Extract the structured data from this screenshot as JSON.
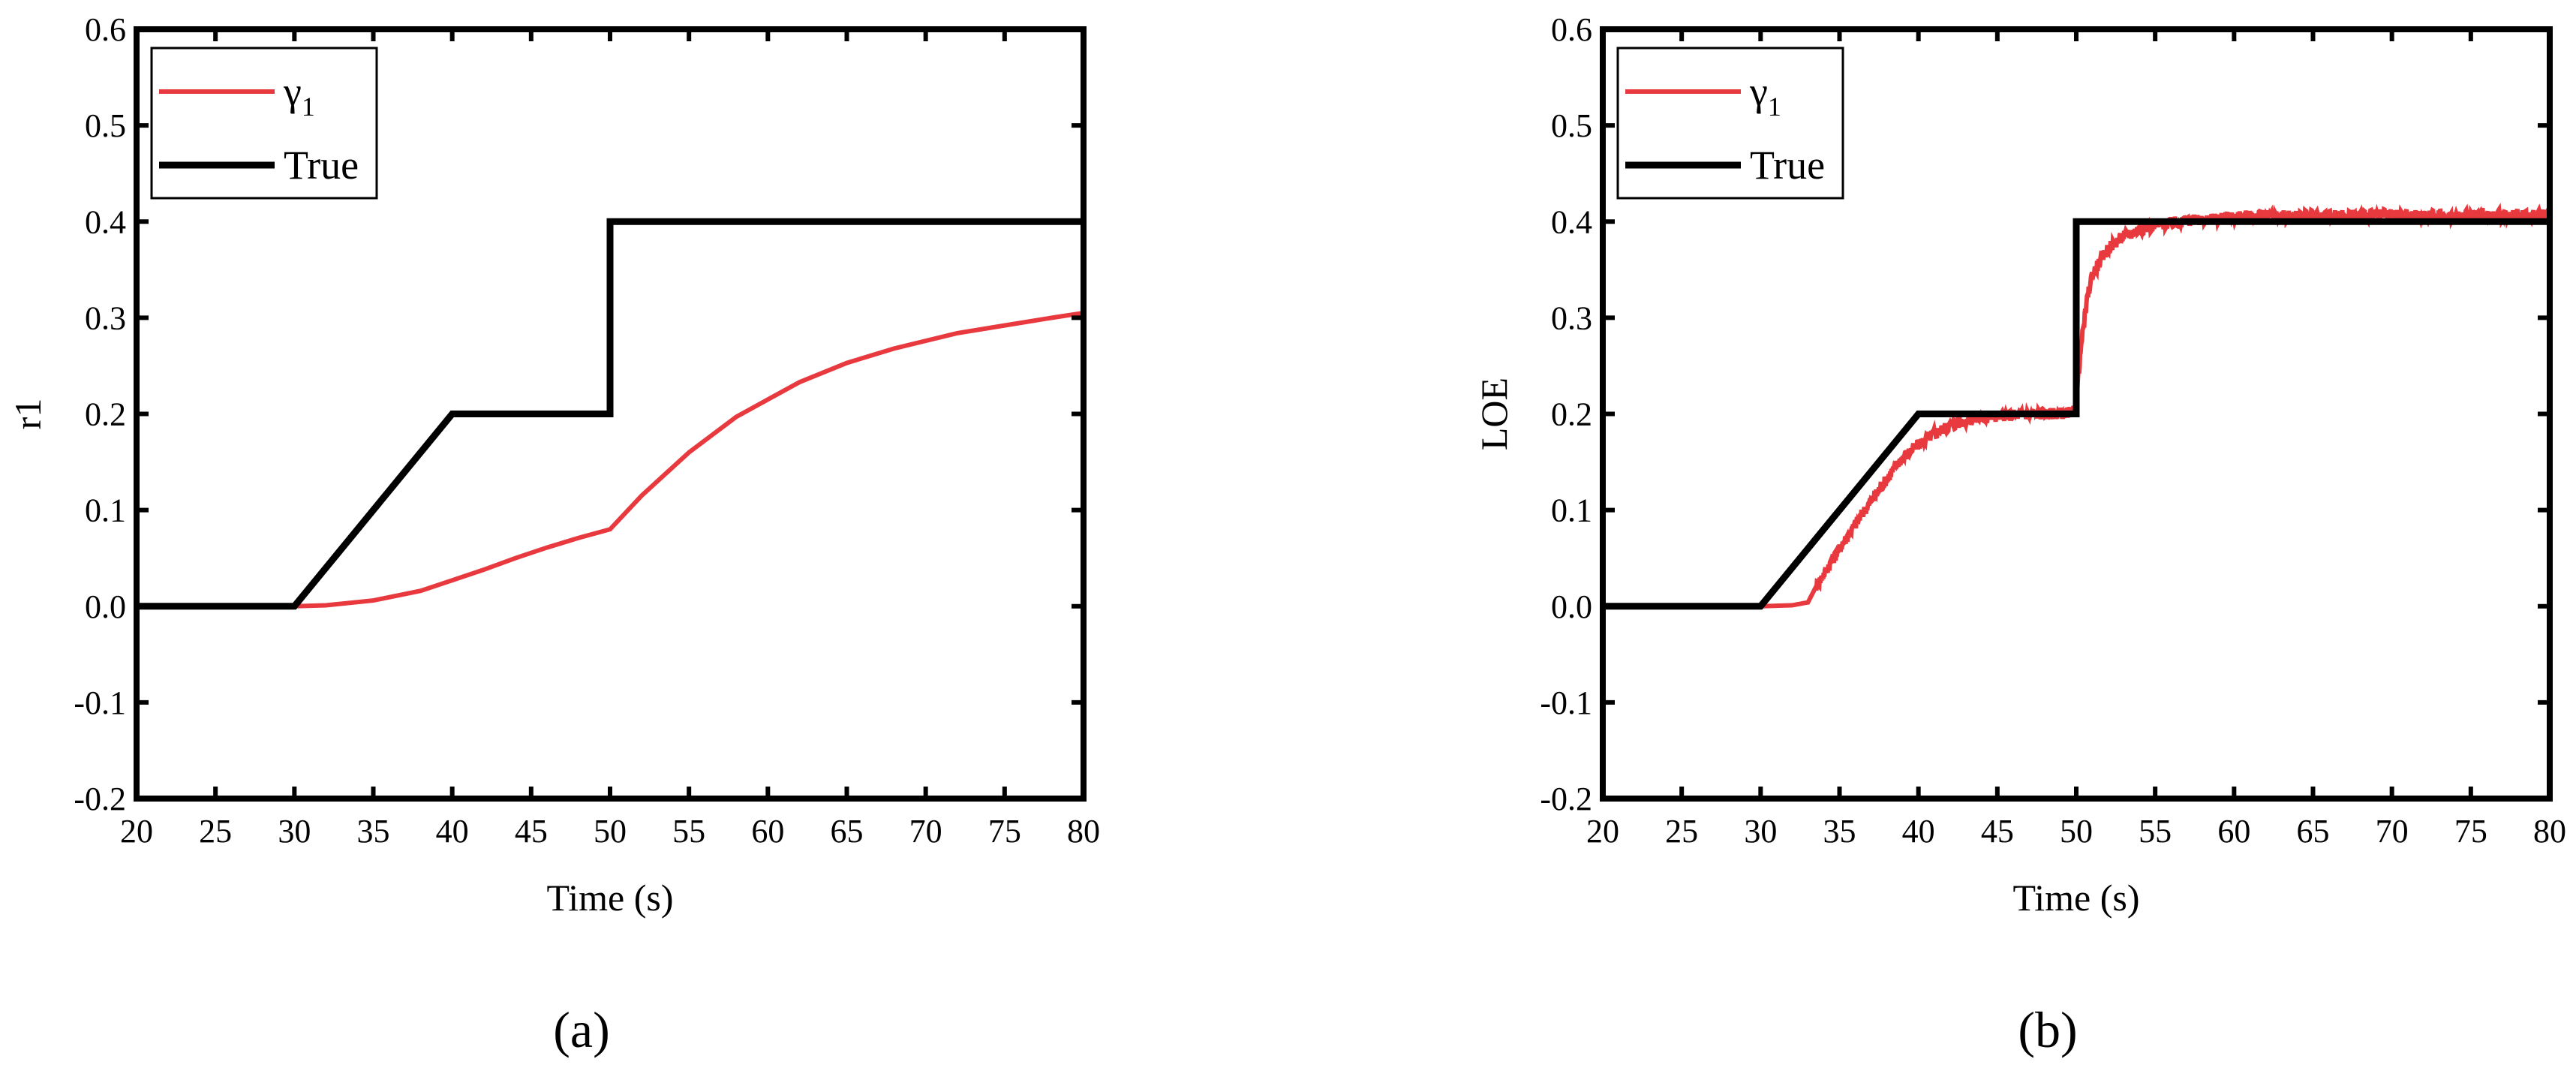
{
  "chart_data": [
    {
      "type": "line",
      "panel_label": "(a)",
      "xlabel": "Time (s)",
      "ylabel": "r1",
      "xlim": [
        20,
        80
      ],
      "ylim": [
        -0.2,
        0.6
      ],
      "xticks": [
        20,
        25,
        30,
        35,
        40,
        45,
        50,
        55,
        60,
        65,
        70,
        75,
        80
      ],
      "yticks": [
        -0.2,
        -0.1,
        0.0,
        0.1,
        0.2,
        0.3,
        0.4,
        0.5,
        0.6
      ],
      "ytick_labels": [
        "-0.2",
        "-0.1",
        "0.0",
        "0.1",
        "0.2",
        "0.3",
        "0.4",
        "0.5",
        "0.6"
      ],
      "grid": false,
      "legend_position": "top-left",
      "legend": [
        {
          "name": "γ",
          "subscript": "1",
          "color": "#e8393f"
        },
        {
          "name": "True",
          "color": "#000000"
        }
      ],
      "series": [
        {
          "name": "γ",
          "subscript": "1",
          "color": "#e8393f",
          "x": [
            30,
            32,
            35,
            38,
            40,
            42,
            44,
            46,
            48,
            50,
            52,
            55,
            58,
            60,
            62,
            65,
            68,
            70,
            72,
            75,
            78,
            80
          ],
          "y": [
            0.0,
            0.001,
            0.006,
            0.016,
            0.027,
            0.038,
            0.05,
            0.061,
            0.071,
            0.08,
            0.115,
            0.16,
            0.197,
            0.215,
            0.233,
            0.253,
            0.268,
            0.276,
            0.284,
            0.292,
            0.3,
            0.305
          ]
        },
        {
          "name": "True",
          "color": "#000000",
          "x": [
            20,
            30,
            40,
            50,
            50,
            80
          ],
          "y": [
            0.0,
            0.0,
            0.2,
            0.2,
            0.4,
            0.4
          ]
        }
      ]
    },
    {
      "type": "line",
      "panel_label": "(b)",
      "xlabel": "Time (s)",
      "ylabel": "LOE",
      "xlim": [
        20,
        80
      ],
      "ylim": [
        -0.2,
        0.6
      ],
      "xticks": [
        20,
        25,
        30,
        35,
        40,
        45,
        50,
        55,
        60,
        65,
        70,
        75,
        80
      ],
      "yticks": [
        -0.2,
        -0.1,
        0.0,
        0.1,
        0.2,
        0.3,
        0.4,
        0.5,
        0.6
      ],
      "ytick_labels": [
        "-0.2",
        "-0.1",
        "0.0",
        "0.1",
        "0.2",
        "0.3",
        "0.4",
        "0.5",
        "0.6"
      ],
      "grid": false,
      "legend_position": "top-left",
      "legend": [
        {
          "name": "γ",
          "subscript": "1",
          "color": "#e8393f"
        },
        {
          "name": "True",
          "color": "#000000"
        }
      ],
      "series": [
        {
          "name": "γ",
          "subscript": "1",
          "color": "#e8393f",
          "x": [
            30,
            32,
            33,
            33.5,
            35,
            37,
            39,
            40,
            41,
            42,
            43,
            44,
            45,
            47,
            49.8,
            50,
            50.3,
            50.7,
            51,
            52,
            53,
            54,
            55,
            57,
            59,
            60,
            62,
            64,
            66,
            68,
            70,
            72,
            74,
            76,
            78,
            80
          ],
          "y": [
            0.0,
            0.001,
            0.004,
            0.02,
            0.06,
            0.11,
            0.155,
            0.168,
            0.18,
            0.188,
            0.193,
            0.196,
            0.198,
            0.2,
            0.201,
            0.215,
            0.27,
            0.32,
            0.345,
            0.372,
            0.385,
            0.392,
            0.396,
            0.401,
            0.403,
            0.405,
            0.406,
            0.406,
            0.406,
            0.406,
            0.407,
            0.406,
            0.406,
            0.407,
            0.406,
            0.407
          ],
          "noise_amplitude": 0.006
        },
        {
          "name": "True",
          "color": "#000000",
          "x": [
            20,
            30,
            40,
            50,
            50,
            80
          ],
          "y": [
            0.0,
            0.0,
            0.2,
            0.2,
            0.4,
            0.4
          ]
        }
      ]
    }
  ]
}
